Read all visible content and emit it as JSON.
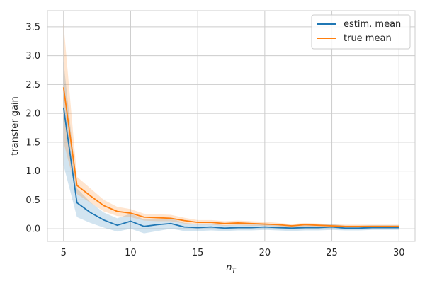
{
  "chart_data": {
    "type": "line",
    "title": "",
    "xlabel": "n_T",
    "xlabel_main": "n",
    "xlabel_sub": "T",
    "ylabel": "transfer gain",
    "xlim": [
      3.8,
      31.2
    ],
    "ylim": [
      -0.22,
      3.78
    ],
    "xticks": [
      5,
      10,
      15,
      20,
      25,
      30
    ],
    "xtick_labels": [
      "5",
      "10",
      "15",
      "20",
      "25",
      "30"
    ],
    "yticks": [
      0.0,
      0.5,
      1.0,
      1.5,
      2.0,
      2.5,
      3.0,
      3.5
    ],
    "ytick_labels": [
      "0.0",
      "0.5",
      "1.0",
      "1.5",
      "2.0",
      "2.5",
      "3.0",
      "3.5"
    ],
    "grid": true,
    "legend_position": "top-right",
    "x": [
      5,
      6,
      7,
      8,
      9,
      10,
      11,
      12,
      13,
      14,
      15,
      16,
      17,
      18,
      19,
      20,
      21,
      22,
      23,
      24,
      25,
      26,
      27,
      28,
      29,
      30
    ],
    "series": [
      {
        "name": "estim. mean",
        "color": "#1f77b4",
        "values": [
          2.1,
          0.45,
          0.28,
          0.15,
          0.06,
          0.13,
          0.04,
          0.07,
          0.09,
          0.03,
          0.02,
          0.03,
          0.01,
          0.02,
          0.02,
          0.03,
          0.02,
          0.01,
          0.02,
          0.02,
          0.03,
          0.01,
          0.01,
          0.02,
          0.02,
          0.02
        ],
        "band_lower": [
          1.1,
          0.2,
          0.1,
          0.02,
          -0.05,
          0.0,
          -0.08,
          -0.04,
          0.0,
          -0.04,
          -0.04,
          -0.03,
          -0.04,
          -0.03,
          -0.03,
          -0.02,
          -0.03,
          -0.04,
          -0.03,
          -0.03,
          -0.02,
          -0.03,
          -0.03,
          -0.02,
          -0.02,
          -0.02
        ],
        "band_upper": [
          2.9,
          0.7,
          0.46,
          0.28,
          0.18,
          0.26,
          0.16,
          0.17,
          0.18,
          0.1,
          0.08,
          0.09,
          0.06,
          0.07,
          0.07,
          0.08,
          0.07,
          0.06,
          0.07,
          0.07,
          0.08,
          0.05,
          0.05,
          0.06,
          0.06,
          0.06
        ]
      },
      {
        "name": "true mean",
        "color": "#ff7f0e",
        "values": [
          2.45,
          0.75,
          0.57,
          0.4,
          0.3,
          0.27,
          0.2,
          0.19,
          0.18,
          0.14,
          0.11,
          0.11,
          0.09,
          0.1,
          0.09,
          0.08,
          0.07,
          0.05,
          0.07,
          0.06,
          0.05,
          0.04,
          0.04,
          0.04,
          0.04,
          0.04
        ],
        "band_lower": [
          1.5,
          0.6,
          0.45,
          0.3,
          0.22,
          0.2,
          0.14,
          0.13,
          0.13,
          0.09,
          0.07,
          0.07,
          0.05,
          0.06,
          0.05,
          0.05,
          0.04,
          0.02,
          0.04,
          0.03,
          0.02,
          0.01,
          0.01,
          0.01,
          0.01,
          0.01
        ],
        "band_upper": [
          3.55,
          0.9,
          0.7,
          0.5,
          0.38,
          0.34,
          0.26,
          0.25,
          0.24,
          0.19,
          0.15,
          0.15,
          0.13,
          0.14,
          0.13,
          0.12,
          0.1,
          0.08,
          0.1,
          0.09,
          0.08,
          0.07,
          0.07,
          0.07,
          0.07,
          0.07
        ]
      }
    ]
  }
}
